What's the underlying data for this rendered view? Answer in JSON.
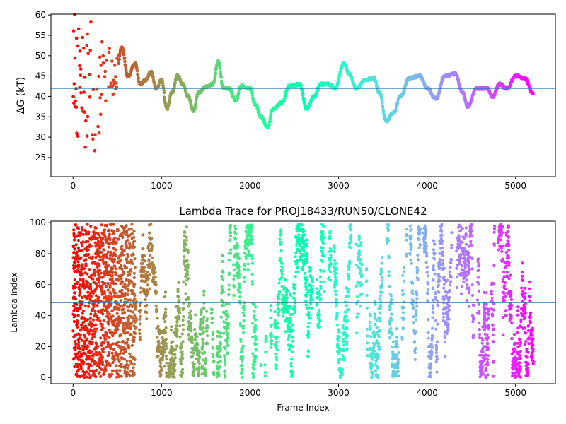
{
  "figure": {
    "background": "#ffffff",
    "accent_line_color": "#1f77b4",
    "colormap": "rainbow"
  },
  "chart_data": [
    {
      "type": "scatter",
      "title": "",
      "xlabel": "",
      "ylabel": "ΔG (kT)",
      "xlim": [
        -250,
        5450
      ],
      "ylim": [
        20.3,
        60.2
      ],
      "xticks": [
        0,
        1000,
        2000,
        3000,
        4000,
        5000
      ],
      "yticks": [
        25,
        30,
        35,
        40,
        45,
        50,
        55,
        60
      ],
      "grid": false,
      "hline": 42.0,
      "color_by": "frame index (rainbow, red at 0 to violet at end)",
      "trace_knots": [
        [
          0,
          38
        ],
        [
          60,
          50
        ],
        [
          120,
          40
        ],
        [
          180,
          45
        ],
        [
          260,
          37
        ],
        [
          330,
          43
        ],
        [
          400,
          46
        ],
        [
          480,
          44
        ],
        [
          550,
          52
        ],
        [
          620,
          45
        ],
        [
          700,
          48
        ],
        [
          760,
          43
        ],
        [
          820,
          44
        ],
        [
          880,
          46
        ],
        [
          940,
          42
        ],
        [
          1000,
          44
        ],
        [
          1060,
          37
        ],
        [
          1120,
          41
        ],
        [
          1180,
          45
        ],
        [
          1240,
          43
        ],
        [
          1300,
          40
        ],
        [
          1360,
          36.5
        ],
        [
          1420,
          41
        ],
        [
          1500,
          42.3
        ],
        [
          1580,
          43
        ],
        [
          1640,
          48.5
        ],
        [
          1700,
          42
        ],
        [
          1760,
          42
        ],
        [
          1840,
          39
        ],
        [
          1900,
          42.5
        ],
        [
          2000,
          42
        ],
        [
          2060,
          38
        ],
        [
          2120,
          35
        ],
        [
          2200,
          32.5
        ],
        [
          2260,
          37
        ],
        [
          2360,
          38.5
        ],
        [
          2440,
          42.5
        ],
        [
          2560,
          43
        ],
        [
          2640,
          37
        ],
        [
          2720,
          40
        ],
        [
          2800,
          43
        ],
        [
          2880,
          43
        ],
        [
          2960,
          42
        ],
        [
          3060,
          48
        ],
        [
          3120,
          45.5
        ],
        [
          3200,
          42
        ],
        [
          3300,
          44
        ],
        [
          3400,
          44.5
        ],
        [
          3460,
          41
        ],
        [
          3540,
          34
        ],
        [
          3620,
          36
        ],
        [
          3700,
          40
        ],
        [
          3800,
          44.5
        ],
        [
          3920,
          45
        ],
        [
          4000,
          42
        ],
        [
          4100,
          39.5
        ],
        [
          4200,
          45
        ],
        [
          4320,
          45.5
        ],
        [
          4400,
          41
        ],
        [
          4460,
          37.5
        ],
        [
          4560,
          42
        ],
        [
          4680,
          42
        ],
        [
          4740,
          40
        ],
        [
          4820,
          43
        ],
        [
          4900,
          42
        ],
        [
          5000,
          45
        ],
        [
          5100,
          44.5
        ],
        [
          5200,
          40.5
        ]
      ],
      "early_scatter_range": [
        0,
        520
      ]
    },
    {
      "type": "scatter",
      "title": "Lambda Trace for PROJ18433/RUN50/CLONE42",
      "xlabel": "Frame Index",
      "ylabel": "Lambda Index",
      "xlim": [
        -250,
        5450
      ],
      "ylim": [
        -4,
        101
      ],
      "xticks": [
        0,
        1000,
        2000,
        3000,
        4000,
        5000
      ],
      "yticks": [
        0,
        20,
        40,
        60,
        80,
        100
      ],
      "grid": false,
      "hline": 48.5,
      "color_by": "frame index (rainbow, red at 0 to violet at end)",
      "n_points": 4200,
      "x_range": [
        0,
        5200
      ],
      "y_range": [
        0,
        99
      ]
    }
  ]
}
